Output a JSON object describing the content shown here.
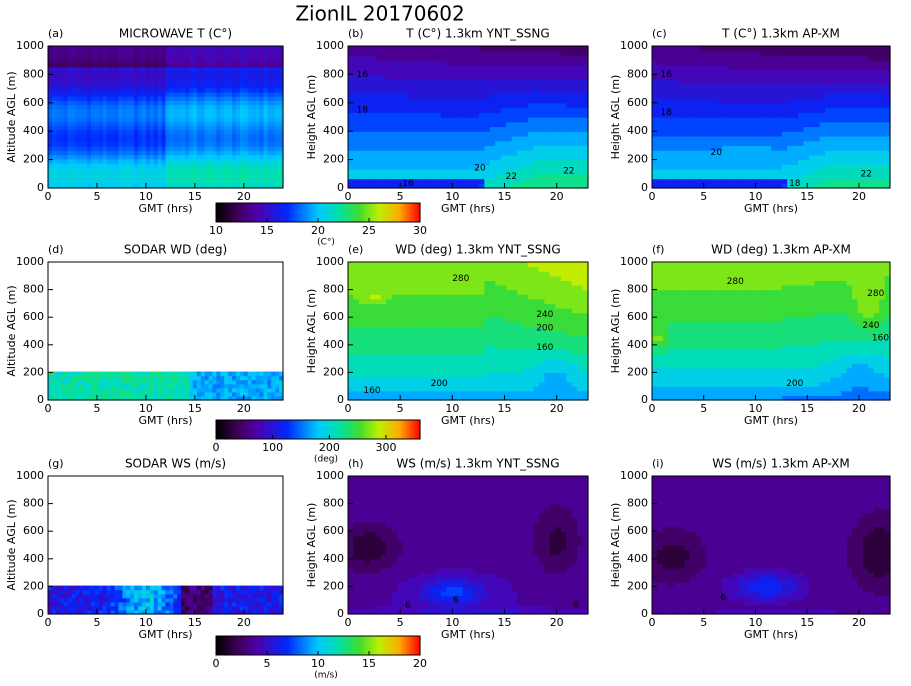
{
  "title": "ZionIL 20170602",
  "chart_data": [
    {
      "type": "heatmap",
      "panel_label": "(a)",
      "title": "MICROWAVE T (C°)",
      "xlabel": "GMT (hrs)",
      "ylabel": "Altitude AGL (m)",
      "xlim": [
        0,
        24
      ],
      "ylim": [
        0,
        1000
      ],
      "xticks": [
        0,
        5,
        10,
        15,
        20
      ],
      "yticks": [
        0,
        200,
        400,
        600,
        800,
        1000
      ],
      "colorbar": {
        "lim": [
          10,
          30
        ],
        "ticks": [
          10,
          15,
          20,
          25,
          30
        ],
        "label": "(C°)"
      }
    },
    {
      "type": "contour",
      "panel_label": "(b)",
      "title": "T (C°) 1.3km YNT_SSNG",
      "xlabel": "GMT (hrs)",
      "ylabel": "Height AGL (m)",
      "xlim": [
        0,
        23
      ],
      "ylim": [
        0,
        1000
      ],
      "xticks": [
        0,
        5,
        10,
        15,
        20
      ],
      "yticks": [
        0,
        200,
        400,
        600,
        800,
        1000
      ],
      "contour_labels": [
        16,
        18,
        20,
        22,
        22,
        16
      ]
    },
    {
      "type": "contour",
      "panel_label": "(c)",
      "title": "T (C°) 1.3km AP-XM",
      "xlabel": "GMT (hrs)",
      "ylabel": "Height AGL (m)",
      "xlim": [
        0,
        23
      ],
      "ylim": [
        0,
        1000
      ],
      "xticks": [
        0,
        5,
        10,
        15,
        20
      ],
      "yticks": [
        0,
        200,
        400,
        600,
        800,
        1000
      ],
      "contour_labels": [
        16,
        18,
        20,
        22,
        18
      ]
    },
    {
      "type": "heatmap",
      "panel_label": "(d)",
      "title": "SODAR WD (deg)",
      "xlabel": "GMT (hrs)",
      "ylabel": "Altitude AGL (m)",
      "xlim": [
        0,
        24
      ],
      "ylim": [
        0,
        1000
      ],
      "xticks": [
        0,
        5,
        10,
        15,
        20
      ],
      "yticks": [
        0,
        200,
        400,
        600,
        800,
        1000
      ],
      "colorbar": {
        "lim": [
          0,
          360
        ],
        "ticks": [
          0,
          100,
          200,
          300
        ],
        "label": "(deg)"
      }
    },
    {
      "type": "contour",
      "panel_label": "(e)",
      "title": "WD (deg) 1.3km YNT_SSNG",
      "xlabel": "GMT (hrs)",
      "ylabel": "Height AGL (m)",
      "xlim": [
        0,
        23
      ],
      "ylim": [
        0,
        1000
      ],
      "xticks": [
        0,
        5,
        10,
        15,
        20
      ],
      "yticks": [
        0,
        200,
        400,
        600,
        800,
        1000
      ],
      "contour_labels": [
        280,
        240,
        200,
        160,
        200,
        160
      ]
    },
    {
      "type": "contour",
      "panel_label": "(f)",
      "title": "WD (deg) 1.3km AP-XM",
      "xlabel": "GMT (hrs)",
      "ylabel": "Height AGL (m)",
      "xlim": [
        0,
        23
      ],
      "ylim": [
        0,
        1000
      ],
      "xticks": [
        0,
        5,
        10,
        15,
        20
      ],
      "yticks": [
        0,
        200,
        400,
        600,
        800,
        1000
      ],
      "contour_labels": [
        280,
        280,
        240,
        160,
        200
      ]
    },
    {
      "type": "heatmap",
      "panel_label": "(g)",
      "title": "SODAR WS (m/s)",
      "xlabel": "GMT (hrs)",
      "ylabel": "Altitude AGL (m)",
      "xlim": [
        0,
        24
      ],
      "ylim": [
        0,
        1000
      ],
      "xticks": [
        0,
        5,
        10,
        15,
        20
      ],
      "yticks": [
        0,
        200,
        400,
        600,
        800,
        1000
      ],
      "colorbar": {
        "lim": [
          0,
          20
        ],
        "ticks": [
          0,
          5,
          10,
          15,
          20
        ],
        "label": "(m/s)"
      }
    },
    {
      "type": "contour",
      "panel_label": "(h)",
      "title": "WS (m/s) 1.3km YNT_SSNG",
      "xlabel": "GMT (hrs)",
      "ylabel": "Height AGL (m)",
      "xlim": [
        0,
        23
      ],
      "ylim": [
        0,
        1000
      ],
      "xticks": [
        0,
        5,
        10,
        15,
        20
      ],
      "yticks": [
        0,
        200,
        400,
        600,
        800,
        1000
      ],
      "contour_labels": [
        6,
        6,
        6
      ]
    },
    {
      "type": "contour",
      "panel_label": "(i)",
      "title": "WS (m/s) 1.3km AP-XM",
      "xlabel": "GMT (hrs)",
      "ylabel": "Height AGL (m)",
      "xlim": [
        0,
        23
      ],
      "ylim": [
        0,
        1000
      ],
      "xticks": [
        0,
        5,
        10,
        15,
        20
      ],
      "yticks": [
        0,
        200,
        400,
        600,
        800,
        1000
      ],
      "contour_labels": [
        6
      ]
    }
  ]
}
